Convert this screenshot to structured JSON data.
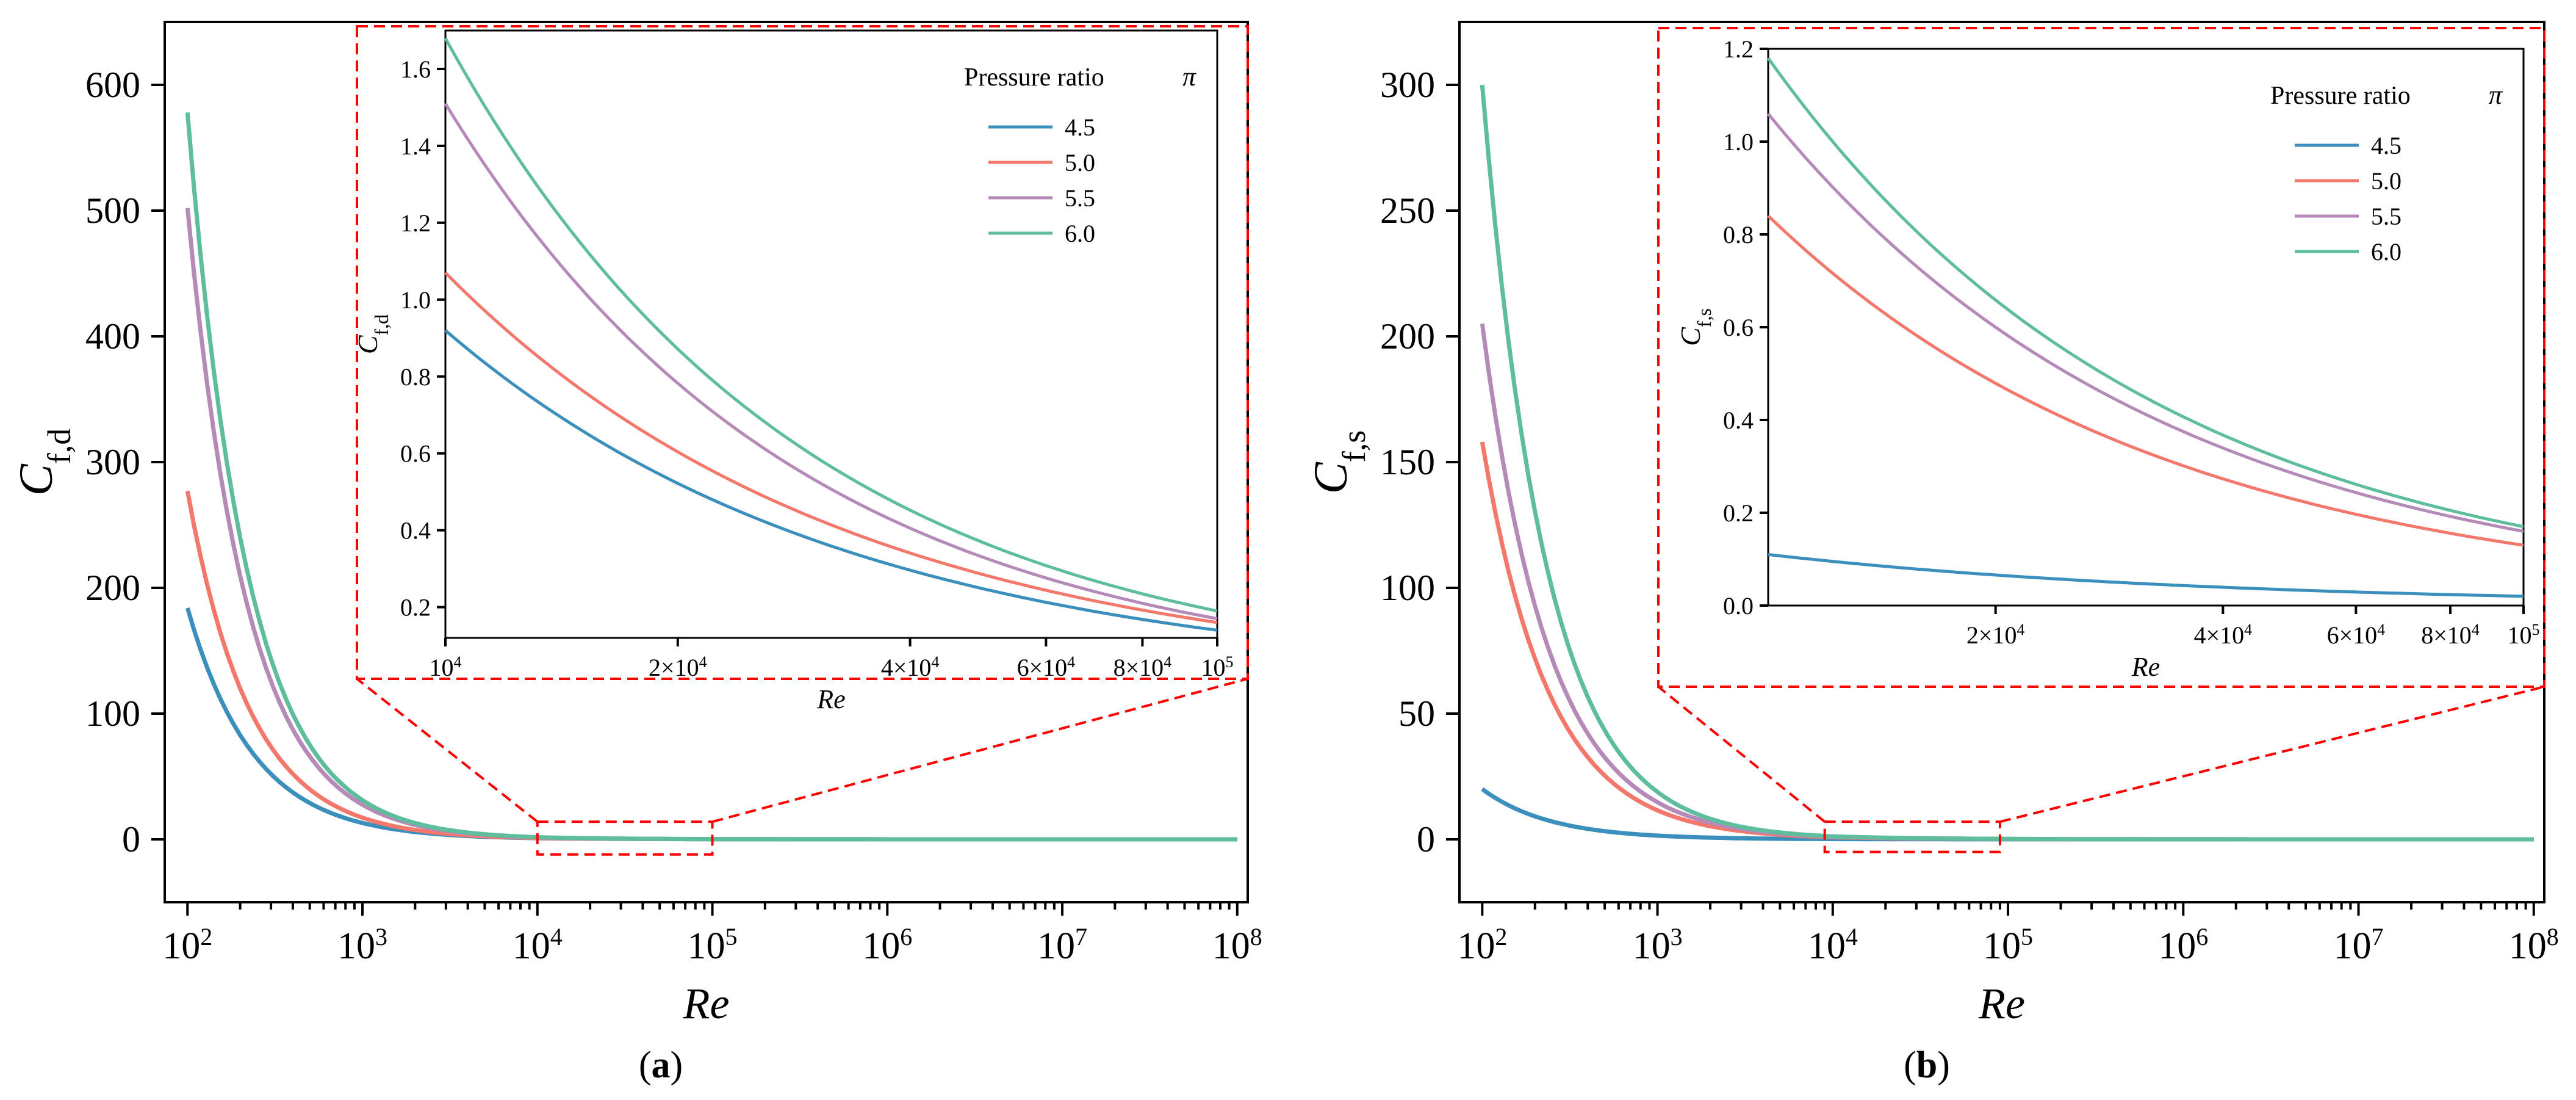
{
  "chart_data": [
    {
      "type": "line",
      "panel_label": "a",
      "xlabel": "Re",
      "ylabel_main": "C",
      "ylabel_sub": "f,d",
      "xscale": "log",
      "xlim": [
        100,
        100000000
      ],
      "ylim": [
        -50,
        650
      ],
      "x_ticks": [
        {
          "value": 100,
          "base": "10",
          "exp": "2"
        },
        {
          "value": 1000,
          "base": "10",
          "exp": "3"
        },
        {
          "value": 10000,
          "base": "10",
          "exp": "4"
        },
        {
          "value": 100000,
          "base": "10",
          "exp": "5"
        },
        {
          "value": 1000000,
          "base": "10",
          "exp": "6"
        },
        {
          "value": 10000000,
          "base": "10",
          "exp": "7"
        },
        {
          "value": 100000000,
          "base": "10",
          "exp": "8"
        }
      ],
      "y_ticks": [
        0,
        100,
        200,
        300,
        400,
        500,
        600
      ],
      "series": [
        {
          "name": "4.5",
          "color": "#3a8fbd",
          "y_at_1e2": 184,
          "y_at_1e4": 0.92,
          "y_at_1e5": 0.14
        },
        {
          "name": "5.0",
          "color": "#f4776b",
          "y_at_1e2": 277,
          "y_at_1e4": 1.07,
          "y_at_1e5": 0.16
        },
        {
          "name": "5.5",
          "color": "#b58ab9",
          "y_at_1e2": 502,
          "y_at_1e4": 1.51,
          "y_at_1e5": 0.17
        },
        {
          "name": "6.0",
          "color": "#5dbd9c",
          "y_at_1e2": 578,
          "y_at_1e4": 1.68,
          "y_at_1e5": 0.19
        }
      ],
      "inset": {
        "xlabel": "Re",
        "ylabel_main": "C",
        "ylabel_sub": "f,d",
        "xlim": [
          10000,
          100000
        ],
        "ylim": [
          0.12,
          1.7
        ],
        "y_ticks": [
          0.2,
          0.4,
          0.6,
          0.8,
          1.0,
          1.2,
          1.4,
          1.6
        ],
        "y_tick_labels": [
          "0.2",
          "0.4",
          "0.6",
          "0.8",
          "1.0",
          "1.2",
          "1.4",
          "1.6"
        ],
        "x_ticks": [
          {
            "value": 10000,
            "base": "10",
            "exp": "4",
            "mult": ""
          },
          {
            "value": 20000,
            "base": "2×10",
            "exp": "4",
            "mult": ""
          },
          {
            "value": 40000,
            "base": "4×10",
            "exp": "4",
            "mult": ""
          },
          {
            "value": 60000,
            "base": "6×10",
            "exp": "4",
            "mult": ""
          },
          {
            "value": 80000,
            "base": "8×10",
            "exp": "4",
            "mult": ""
          },
          {
            "value": 100000,
            "base": "10",
            "exp": "5",
            "mult": ""
          }
        ],
        "legend_title": "Pressure ratio π",
        "zoom_x": [
          10000,
          100000
        ],
        "zoom_y": [
          -12,
          14
        ]
      }
    },
    {
      "type": "line",
      "panel_label": "b",
      "xlabel": "Re",
      "ylabel_main": "C",
      "ylabel_sub": "f,s",
      "xscale": "log",
      "xlim": [
        100,
        100000000
      ],
      "ylim": [
        -25,
        325
      ],
      "x_ticks": [
        {
          "value": 100,
          "base": "10",
          "exp": "2"
        },
        {
          "value": 1000,
          "base": "10",
          "exp": "3"
        },
        {
          "value": 10000,
          "base": "10",
          "exp": "4"
        },
        {
          "value": 100000,
          "base": "10",
          "exp": "5"
        },
        {
          "value": 1000000,
          "base": "10",
          "exp": "6"
        },
        {
          "value": 10000000,
          "base": "10",
          "exp": "7"
        },
        {
          "value": 100000000,
          "base": "10",
          "exp": "8"
        }
      ],
      "y_ticks": [
        0,
        50,
        100,
        150,
        200,
        250,
        300
      ],
      "series": [
        {
          "name": "4.5",
          "color": "#3a8fbd",
          "y_at_1e2": 20,
          "y_at_1e4": 0.11,
          "y_at_1e5": 0.02
        },
        {
          "name": "5.0",
          "color": "#f4776b",
          "y_at_1e2": 158,
          "y_at_1e4": 0.84,
          "y_at_1e5": 0.13
        },
        {
          "name": "5.5",
          "color": "#b58ab9",
          "y_at_1e2": 205,
          "y_at_1e4": 1.06,
          "y_at_1e5": 0.16
        },
        {
          "name": "6.0",
          "color": "#5dbd9c",
          "y_at_1e2": 300,
          "y_at_1e4": 1.18,
          "y_at_1e5": 0.17
        }
      ],
      "inset": {
        "xlabel": "Re",
        "ylabel_main": "C",
        "ylabel_sub": "f,s",
        "xlim": [
          10000,
          100000
        ],
        "ylim": [
          0,
          1.2
        ],
        "y_ticks": [
          0,
          0.2,
          0.4,
          0.6,
          0.8,
          1.0,
          1.2
        ],
        "y_tick_labels": [
          "0.0",
          "0.2",
          "0.4",
          "0.6",
          "0.8",
          "1.0",
          "1.2"
        ],
        "x_ticks": [
          {
            "value": 20000,
            "base": "2×10",
            "exp": "4"
          },
          {
            "value": 40000,
            "base": "4×10",
            "exp": "4"
          },
          {
            "value": 60000,
            "base": "6×10",
            "exp": "4"
          },
          {
            "value": 80000,
            "base": "8×10",
            "exp": "4"
          },
          {
            "value": 100000,
            "base": "10",
            "exp": "5"
          }
        ],
        "legend_title": "Pressure ratio π",
        "zoom_x": [
          9000,
          90000
        ],
        "zoom_y": [
          -5,
          7
        ]
      }
    }
  ]
}
